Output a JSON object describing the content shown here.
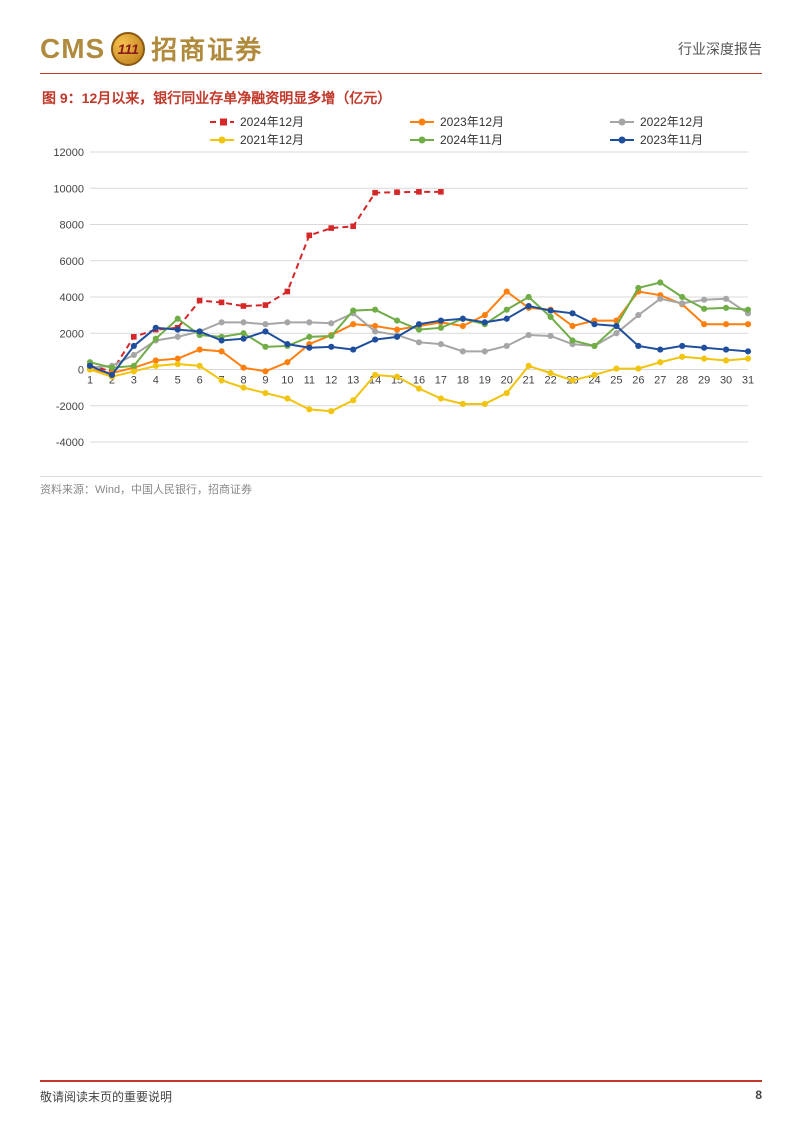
{
  "header": {
    "logo_cms": "CMS",
    "logo_coin_text": "111",
    "logo_cn": "招商证券",
    "doc_type": "行业深度报告"
  },
  "figure": {
    "title": "图 9：12月以来，银行同业存单净融资明显多增（亿元）",
    "source": "资料来源：Wind，中国人民银行，招商证券",
    "chart": {
      "type": "line",
      "x_categories": [
        "1",
        "2",
        "3",
        "4",
        "5",
        "6",
        "7",
        "8",
        "9",
        "10",
        "11",
        "12",
        "13",
        "14",
        "15",
        "16",
        "17",
        "18",
        "19",
        "20",
        "21",
        "22",
        "23",
        "24",
        "25",
        "26",
        "27",
        "28",
        "29",
        "30",
        "31"
      ],
      "ylim": [
        -4000,
        12000
      ],
      "ytick_step": 2000,
      "yticks": [
        -4000,
        -2000,
        0,
        2000,
        4000,
        6000,
        8000,
        10000,
        12000
      ],
      "background_color": "#ffffff",
      "grid_color": "#d9d9d9",
      "axis_color": "#888888",
      "label_fontsize": 11,
      "legend_fontsize": 12,
      "legend_position": "top",
      "line_width": 2,
      "marker_size": 4,
      "series": [
        {
          "name": "2024年12月",
          "color": "#d62728",
          "dash": "6,4",
          "marker": "square",
          "data": [
            200,
            -100,
            1800,
            2200,
            2300,
            3800,
            3700,
            3500,
            3550,
            4300,
            7400,
            7800,
            7900,
            9750,
            9780,
            9800,
            9800
          ]
        },
        {
          "name": "2023年12月",
          "color": "#ff7f0e",
          "dash": "",
          "marker": "circle",
          "data": [
            0,
            -200,
            100,
            500,
            600,
            1100,
            1000,
            100,
            -100,
            400,
            1400,
            1900,
            2500,
            2400,
            2200,
            2400,
            2600,
            2400,
            3000,
            4300,
            3400,
            3300,
            2400,
            2700,
            2700,
            4300,
            4100,
            3600,
            2500,
            2500,
            2500
          ]
        },
        {
          "name": "2022年12月",
          "color": "#a6a6a6",
          "dash": "",
          "marker": "circle",
          "data": [
            100,
            200,
            800,
            1600,
            1800,
            2100,
            2600,
            2600,
            2500,
            2600,
            2600,
            2550,
            3100,
            2100,
            1900,
            1500,
            1400,
            1000,
            1000,
            1300,
            1900,
            1850,
            1400,
            1300,
            2000,
            3000,
            3900,
            3650,
            3850,
            3900,
            3100
          ]
        },
        {
          "name": "2021年12月",
          "color": "#f1c40f",
          "dash": "",
          "marker": "circle",
          "data": [
            0,
            -400,
            -100,
            200,
            300,
            200,
            -600,
            -1000,
            -1300,
            -1600,
            -2200,
            -2300,
            -1700,
            -300,
            -400,
            -1050,
            -1600,
            -1900,
            -1900,
            -1300,
            200,
            -200,
            -600,
            -300,
            50,
            50,
            400,
            700,
            600,
            500,
            600
          ]
        },
        {
          "name": "2024年11月",
          "color": "#70ad47",
          "dash": "",
          "marker": "circle",
          "data": [
            400,
            100,
            200,
            1700,
            2800,
            1900,
            1800,
            2000,
            1250,
            1300,
            1800,
            1850,
            3250,
            3300,
            2700,
            2200,
            2300,
            2800,
            2500,
            3300,
            4000,
            2900,
            1600,
            1300,
            2400,
            4500,
            4800,
            4000,
            3350,
            3400,
            3300
          ]
        },
        {
          "name": "2023年11月",
          "color": "#1f4e9c",
          "dash": "",
          "marker": "circle",
          "data": [
            200,
            -300,
            1300,
            2300,
            2200,
            2100,
            1600,
            1700,
            2100,
            1400,
            1200,
            1250,
            1100,
            1650,
            1800,
            2500,
            2700,
            2800,
            2600,
            2800,
            3500,
            3250,
            3100,
            2500,
            2400,
            1300,
            1100,
            1300,
            1200,
            1100,
            1000
          ]
        }
      ]
    }
  },
  "footer": {
    "note": "敬请阅读末页的重要说明",
    "page": "8"
  }
}
